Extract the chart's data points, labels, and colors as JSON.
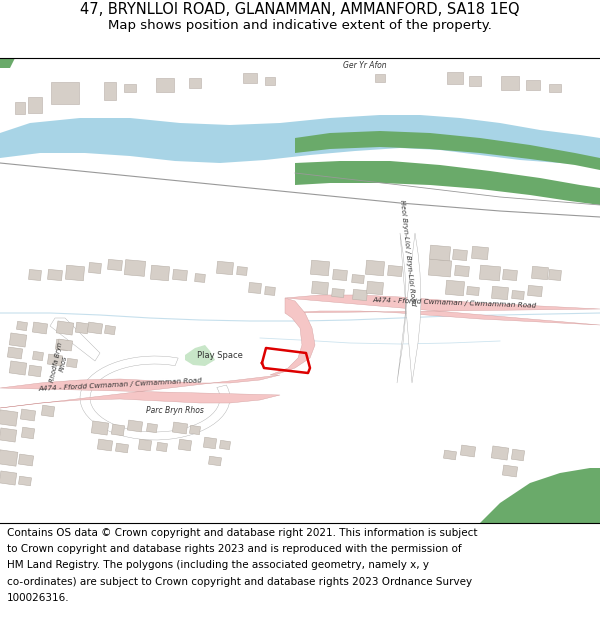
{
  "title_line1": "47, BRYNLLOI ROAD, GLANAMMAN, AMMANFORD, SA18 1EQ",
  "title_line2": "Map shows position and indicative extent of the property.",
  "footer_lines": [
    "Contains OS data © Crown copyright and database right 2021. This information is subject",
    "to Crown copyright and database rights 2023 and is reproduced with the permission of",
    "HM Land Registry. The polygons (including the associated geometry, namely x, y",
    "co-ordinates) are subject to Crown copyright and database rights 2023 Ordnance Survey",
    "100026316."
  ],
  "title_fontsize": 10.5,
  "subtitle_fontsize": 9.5,
  "footer_fontsize": 7.5,
  "bg_color": "#ffffff",
  "map_bg": "#f8f8f8",
  "road_color_main": "#f5c6c6",
  "road_color_outline": "#d4a0a0",
  "water_color": "#a8d4e6",
  "green_color": "#6aaa6a",
  "green_light": "#c8e6c8",
  "building_color": "#d6cfc8",
  "building_outline": "#b8b0a8",
  "plot_color": "#dd0000",
  "plot_lw": 1.8,
  "line_color": "#888888",
  "stream_color": "#b8d8e8"
}
